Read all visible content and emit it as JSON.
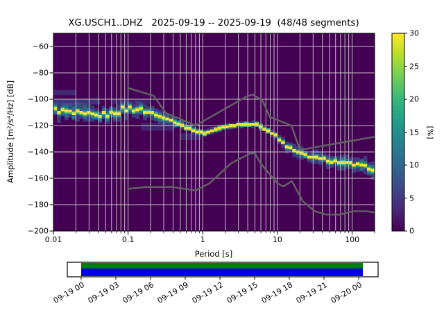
{
  "chart_data": {
    "type": "heatmap",
    "title": "XG.USCH1..DHZ   2025-09-19 -- 2025-09-19  (48/48 segments)",
    "xlabel": "Period [s]",
    "ylabel": "Amplitude [m²/s⁴/Hz] [dB]",
    "x_scale": "log",
    "xlim": [
      0.01,
      200
    ],
    "ylim": [
      -200,
      -50
    ],
    "grid": true,
    "background_color": "#440154",
    "grid_color": "#c9c9c9",
    "x_ticks": {
      "values": [
        0.01,
        0.1,
        1,
        10,
        100
      ],
      "labels": [
        "0.01",
        "0.1",
        "1",
        "10",
        "100"
      ]
    },
    "y_ticks": {
      "values": [
        -200,
        -180,
        -160,
        -140,
        -120,
        -100,
        -80,
        -60
      ],
      "labels": [
        "−200",
        "−180",
        "−160",
        "−140",
        "−120",
        "−100",
        "−80",
        "−60"
      ]
    },
    "colorbar": {
      "label": "[%]",
      "min": 0,
      "max": 30,
      "tick_values": [
        0,
        5,
        10,
        15,
        20,
        25,
        30
      ],
      "tick_labels": [
        "0",
        "5",
        "10",
        "15",
        "20",
        "25",
        "30"
      ],
      "colormap": "viridis",
      "gradient": [
        "#440154",
        "#482878",
        "#3e4a89",
        "#31688e",
        "#26828e",
        "#1f9e89",
        "#35b779",
        "#6ece58",
        "#b5de2b",
        "#fde725"
      ]
    },
    "psd_distribution": {
      "mode": {
        "periods": [
          0.01,
          0.015,
          0.025,
          0.04,
          0.06,
          0.08,
          0.1,
          0.13,
          0.2,
          0.3,
          0.45,
          0.65,
          0.9,
          1.1,
          1.6,
          2.5,
          3.5,
          5.0,
          6.5,
          8.0,
          10.0,
          13.0,
          18.0,
          25.0,
          35.0,
          50.0,
          70.0,
          100.0,
          140.0,
          200.0
        ],
        "db": [
          -108,
          -110,
          -112,
          -112.5,
          -111,
          -108.5,
          -107,
          -107.5,
          -110,
          -114,
          -118,
          -122,
          -125,
          -125.5,
          -122.5,
          -120,
          -118.6,
          -118.8,
          -121.5,
          -125,
          -129.5,
          -135,
          -140.5,
          -143,
          -145,
          -146.5,
          -148,
          -149.5,
          -151,
          -153
        ]
      },
      "spread_halfwidth_db": {
        "periods": [
          0.01,
          0.03,
          0.07,
          0.15,
          0.3,
          0.5,
          0.8,
          1.5,
          3,
          6,
          9,
          15,
          25,
          50,
          100,
          200
        ],
        "db": [
          6.5,
          6.5,
          6.0,
          6.0,
          5.0,
          3.5,
          2.8,
          2.4,
          2.2,
          2.2,
          3.0,
          4.0,
          4.5,
          5.0,
          5.5,
          6.5
        ]
      },
      "layer_colors": [
        "#3f4689",
        "#2f6c8e",
        "#35b779",
        "#fde725"
      ],
      "extra_patches": [
        {
          "period_range": [
            0.01,
            0.02
          ],
          "db_center": -95.0,
          "db_halfwidth": 1.6,
          "color": "#3f4689",
          "opacity": 0.6
        },
        {
          "period_range": [
            0.01,
            0.042
          ],
          "db_center": -101.5,
          "db_halfwidth": 2.0,
          "color": "#3f4689",
          "opacity": 0.75
        },
        {
          "period_range": [
            0.013,
            0.028
          ],
          "db_center": -104.5,
          "db_halfwidth": 1.3,
          "color": "#2f6c8e",
          "opacity": 0.55
        },
        {
          "period_range": [
            0.06,
            0.2
          ],
          "db_center": -102.0,
          "db_halfwidth": 2.0,
          "color": "#3f4689",
          "opacity": 0.45
        },
        {
          "period_range": [
            0.15,
            0.42
          ],
          "db_center": -121.0,
          "db_halfwidth": 3.0,
          "color": "#3f4689",
          "opacity": 0.5
        },
        {
          "period_range": [
            0.5,
            0.95
          ],
          "db_center": -128.5,
          "db_halfwidth": 2.2,
          "color": "#3f4689",
          "opacity": 0.5
        }
      ]
    },
    "noise_models": {
      "color": "#636363",
      "nlnm": {
        "periods": [
          0.1,
          0.17,
          0.4,
          0.8,
          1.24,
          2.4,
          4.3,
          5.0,
          6.0,
          10.0,
          12.0,
          15.6,
          21.9,
          31.6,
          45.0,
          70.0,
          101.0,
          154.0,
          200.0
        ],
        "db": [
          -168.0,
          -166.7,
          -166.7,
          -169.2,
          -163.7,
          -148.6,
          -141.1,
          -141.1,
          -149.0,
          -163.8,
          -166.2,
          -162.1,
          -177.5,
          -185.0,
          -187.5,
          -187.5,
          -185.0,
          -185.0,
          -185.9
        ]
      },
      "nhnm": {
        "periods": [
          0.1,
          0.22,
          0.32,
          0.8,
          3.8,
          4.6,
          6.3,
          7.9,
          15.4,
          20.0,
          200.0
        ],
        "db": [
          -91.5,
          -97.4,
          -110.5,
          -120.0,
          -98.1,
          -96.5,
          -101.0,
          -113.5,
          -120.0,
          -138.5,
          -128.5
        ]
      }
    }
  },
  "timeline": {
    "tick_labels": [
      "09-19 00",
      "09-19 03",
      "09-19 06",
      "09-19 09",
      "09-19 12",
      "09-19 15",
      "09-19 18",
      "09-19 21",
      "09-20 00"
    ],
    "coverage": {
      "top_color": "#007f00",
      "bottom_color": "#0000ee"
    },
    "box_fill": "#ffffff",
    "border_color": "#000000"
  }
}
